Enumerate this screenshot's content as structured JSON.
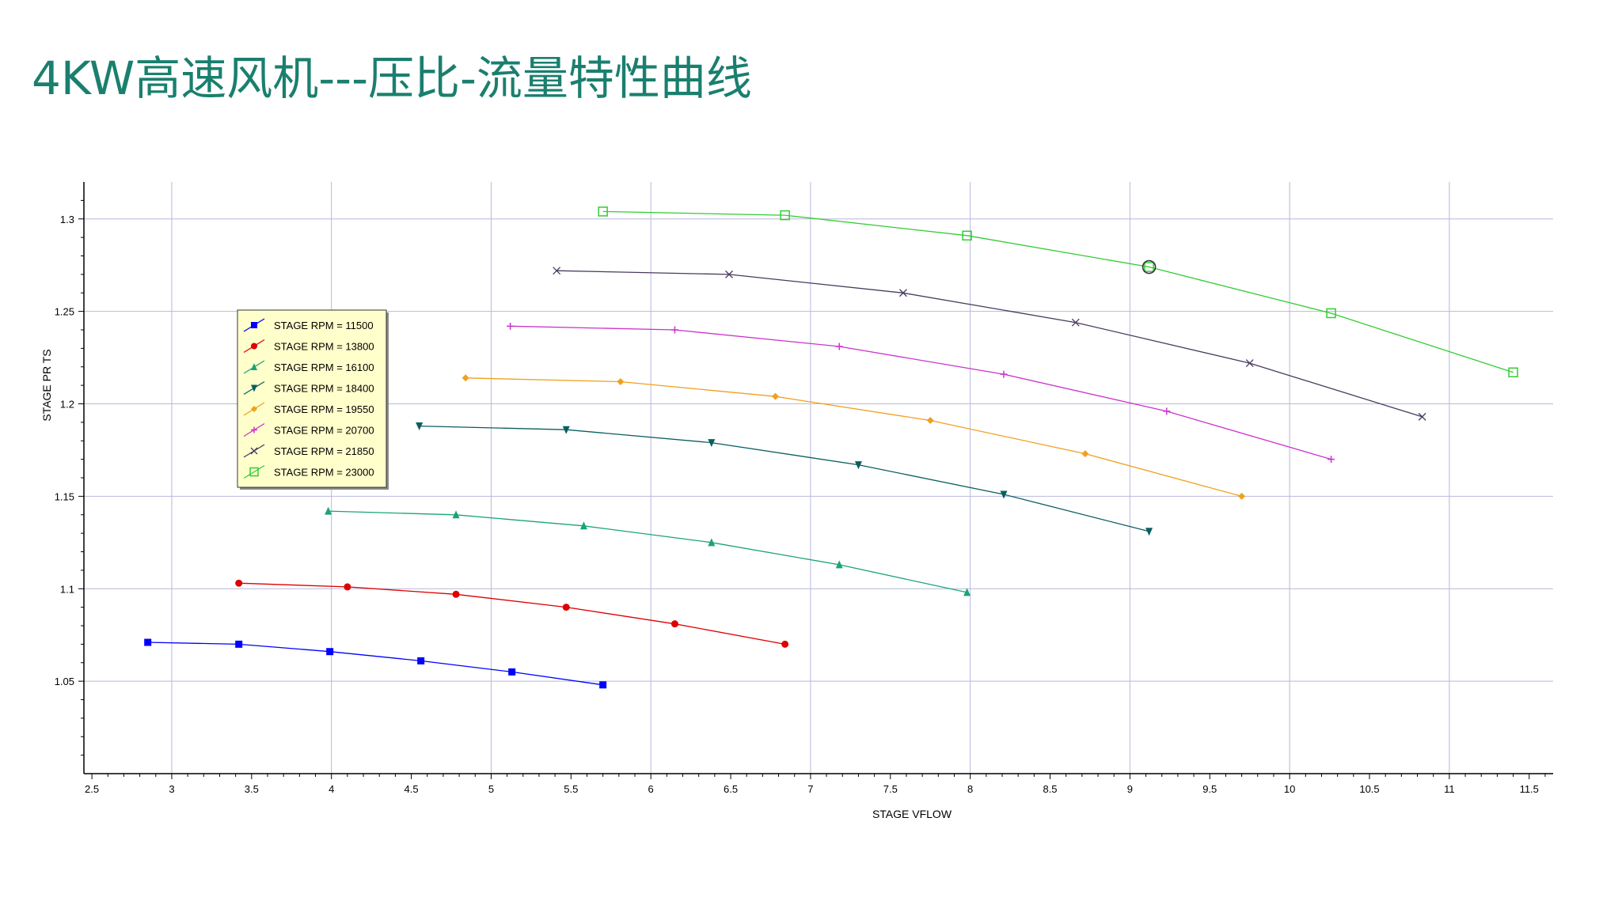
{
  "slide": {
    "title": "4KW高速风机---压比-流量特性曲线"
  },
  "chart_data": {
    "type": "line",
    "xlabel": "STAGE VFLOW",
    "ylabel": "STAGE PR TS",
    "xlim": [
      2.45,
      11.65
    ],
    "ylim": [
      1.0,
      1.32
    ],
    "x_ticks": [
      2.5,
      3,
      3.5,
      4,
      4.5,
      5,
      5.5,
      6,
      6.5,
      7,
      7.5,
      8,
      8.5,
      9,
      9.5,
      10,
      10.5,
      11,
      11.5
    ],
    "x_tick_labels": [
      "2.5",
      "3",
      "3.5",
      "4",
      "4.5",
      "5",
      "5.5",
      "6",
      "6.5",
      "7",
      "7.5",
      "8",
      "8.5",
      "9",
      "9.5",
      "10",
      "10.5",
      "11",
      "11.5"
    ],
    "y_ticks": [
      1.05,
      1.1,
      1.15,
      1.2,
      1.25,
      1.3
    ],
    "y_tick_labels": [
      "1.05",
      "1.1",
      "1.15",
      "1.2",
      "1.25",
      "1.3"
    ],
    "grid": true,
    "legend_position": "left",
    "series": [
      {
        "name": "STAGE RPM = 11500",
        "color": "#0000ff",
        "marker": "square",
        "x": [
          2.85,
          3.42,
          3.99,
          4.56,
          5.13,
          5.7
        ],
        "y": [
          1.071,
          1.07,
          1.066,
          1.061,
          1.055,
          1.048
        ]
      },
      {
        "name": "STAGE RPM = 13800",
        "color": "#dd0000",
        "marker": "circle",
        "x": [
          3.42,
          4.1,
          4.78,
          5.47,
          6.15,
          6.84
        ],
        "y": [
          1.103,
          1.101,
          1.097,
          1.09,
          1.081,
          1.07
        ]
      },
      {
        "name": "STAGE RPM = 16100",
        "color": "#1aa37a",
        "marker": "triangle-up",
        "x": [
          3.98,
          4.78,
          5.58,
          6.38,
          7.18,
          7.98
        ],
        "y": [
          1.142,
          1.14,
          1.134,
          1.125,
          1.113,
          1.098
        ]
      },
      {
        "name": "STAGE RPM = 18400",
        "color": "#0a5e5e",
        "marker": "triangle-down",
        "x": [
          4.55,
          5.47,
          6.38,
          7.3,
          8.21,
          9.12
        ],
        "y": [
          1.188,
          1.186,
          1.179,
          1.167,
          1.151,
          1.131
        ]
      },
      {
        "name": "STAGE RPM = 19550",
        "color": "#f0a020",
        "marker": "diamond",
        "x": [
          4.84,
          5.81,
          6.78,
          7.75,
          8.72,
          9.7
        ],
        "y": [
          1.214,
          1.212,
          1.204,
          1.191,
          1.173,
          1.15
        ]
      },
      {
        "name": "STAGE RPM = 20700",
        "color": "#cc33cc",
        "marker": "plus",
        "x": [
          5.12,
          6.15,
          7.18,
          8.21,
          9.23,
          10.26
        ],
        "y": [
          1.242,
          1.24,
          1.231,
          1.216,
          1.196,
          1.17
        ]
      },
      {
        "name": "STAGE RPM = 21850",
        "color": "#4a3a5e",
        "marker": "x",
        "x": [
          5.41,
          6.49,
          7.58,
          8.66,
          9.75,
          10.83
        ],
        "y": [
          1.272,
          1.27,
          1.26,
          1.244,
          1.222,
          1.193
        ]
      },
      {
        "name": "STAGE RPM = 23000",
        "color": "#33cc33",
        "marker": "open-square",
        "x": [
          5.7,
          6.84,
          7.98,
          9.12,
          10.26,
          11.4
        ],
        "y": [
          1.304,
          1.302,
          1.291,
          1.274,
          1.249,
          1.217
        ]
      }
    ],
    "highlight_point": {
      "series": "STAGE RPM = 23000",
      "x": 9.12,
      "y": 1.274
    }
  }
}
